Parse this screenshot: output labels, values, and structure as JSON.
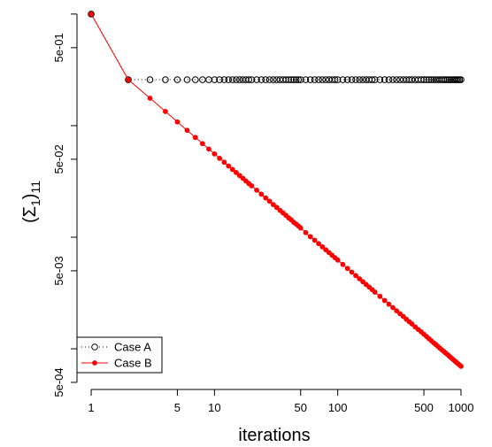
{
  "chart_data": {
    "type": "scatter-line",
    "xlabel": "iterations",
    "ylabel": [
      "(Σ",
      "1",
      ")",
      "11"
    ],
    "log_x": true,
    "log_y": true,
    "xlim": [
      0.767,
      1325
    ],
    "ylim": [
      0.000432,
      1.22
    ],
    "xticks": [
      1,
      5,
      10,
      50,
      100,
      500,
      1000
    ],
    "yticks": [
      {
        "value": 0.5,
        "label": "5e-01"
      },
      {
        "value": 0.05,
        "label": "5e-02"
      },
      {
        "value": 0.005,
        "label": "5e-03"
      },
      {
        "value": 0.0005,
        "label": "5e-04"
      }
    ],
    "yticks_minor": [
      1,
      0.1,
      0.01,
      0.001
    ],
    "legend": "bottomleft",
    "x": [
      1,
      2,
      3,
      4,
      5,
      6,
      7,
      8,
      9,
      10,
      11,
      12,
      13,
      14,
      15,
      16,
      17,
      18,
      19,
      20,
      22,
      24,
      26,
      28,
      30,
      32,
      34,
      36,
      38,
      40,
      42,
      44,
      46,
      48,
      50,
      55,
      60,
      65,
      70,
      75,
      80,
      85,
      90,
      95,
      100,
      110,
      120,
      130,
      140,
      150,
      160,
      170,
      180,
      190,
      200,
      220,
      240,
      260,
      280,
      300,
      320,
      340,
      360,
      380,
      400,
      425,
      450,
      475,
      500,
      525,
      550,
      575,
      600,
      625,
      650,
      675,
      700,
      725,
      750,
      775,
      800,
      825,
      850,
      875,
      900,
      925,
      950,
      975,
      1000
    ],
    "series": [
      {
        "name": "Case A",
        "color": "#000000",
        "marker": "open",
        "line": "dotted",
        "values": [
          1,
          0.258,
          0.258,
          0.258,
          0.258,
          0.258,
          0.258,
          0.258,
          0.258,
          0.258,
          0.258,
          0.258,
          0.258,
          0.258,
          0.258,
          0.258,
          0.258,
          0.258,
          0.258,
          0.258,
          0.258,
          0.258,
          0.258,
          0.258,
          0.258,
          0.258,
          0.258,
          0.258,
          0.258,
          0.258,
          0.258,
          0.258,
          0.258,
          0.258,
          0.258,
          0.258,
          0.258,
          0.258,
          0.258,
          0.258,
          0.258,
          0.258,
          0.258,
          0.258,
          0.258,
          0.258,
          0.258,
          0.258,
          0.258,
          0.258,
          0.258,
          0.258,
          0.258,
          0.258,
          0.258,
          0.258,
          0.258,
          0.258,
          0.258,
          0.258,
          0.258,
          0.258,
          0.258,
          0.258,
          0.258,
          0.258,
          0.258,
          0.258,
          0.258,
          0.258,
          0.258,
          0.258,
          0.258,
          0.258,
          0.258,
          0.258,
          0.258,
          0.258,
          0.258,
          0.258,
          0.258,
          0.258,
          0.258,
          0.258,
          0.258,
          0.258,
          0.258,
          0.258,
          0.258
        ]
      },
      {
        "name": "Case B",
        "color": "#ff0000",
        "marker": "filled",
        "line": "solid",
        "values": [
          1,
          0.258,
          0.176,
          0.134,
          0.108,
          0.0908,
          0.0784,
          0.069,
          0.0617,
          0.0558,
          0.051,
          0.047,
          0.0435,
          0.0405,
          0.038,
          0.0357,
          0.0337,
          0.0319,
          0.0303,
          0.0289,
          0.0264,
          0.0243,
          0.0225,
          0.021,
          0.0196,
          0.0185,
          0.0174,
          0.0165,
          0.0157,
          0.0149,
          0.0143,
          0.0136,
          0.0131,
          0.0126,
          0.0121,
          0.011,
          0.0101,
          0.0094,
          0.00876,
          0.0082,
          0.00771,
          0.00728,
          0.00689,
          0.00655,
          0.00624,
          0.0057,
          0.00525,
          0.00486,
          0.00453,
          0.00424,
          0.00399,
          0.00377,
          0.00357,
          0.00339,
          0.00322,
          0.00295,
          0.00271,
          0.00251,
          0.00234,
          0.00219,
          0.00206,
          0.00195,
          0.00184,
          0.00175,
          0.00167,
          0.00157,
          0.00149,
          0.00142,
          0.00135,
          0.00129,
          0.00123,
          0.00118,
          0.00113,
          0.00109,
          0.00105,
          0.00101,
          0.000978,
          0.000947,
          0.000917,
          0.000889,
          0.000862,
          0.000837,
          0.000813,
          0.000791,
          0.00077,
          0.00075,
          0.000732,
          0.000714,
          0.000697
        ]
      }
    ]
  }
}
